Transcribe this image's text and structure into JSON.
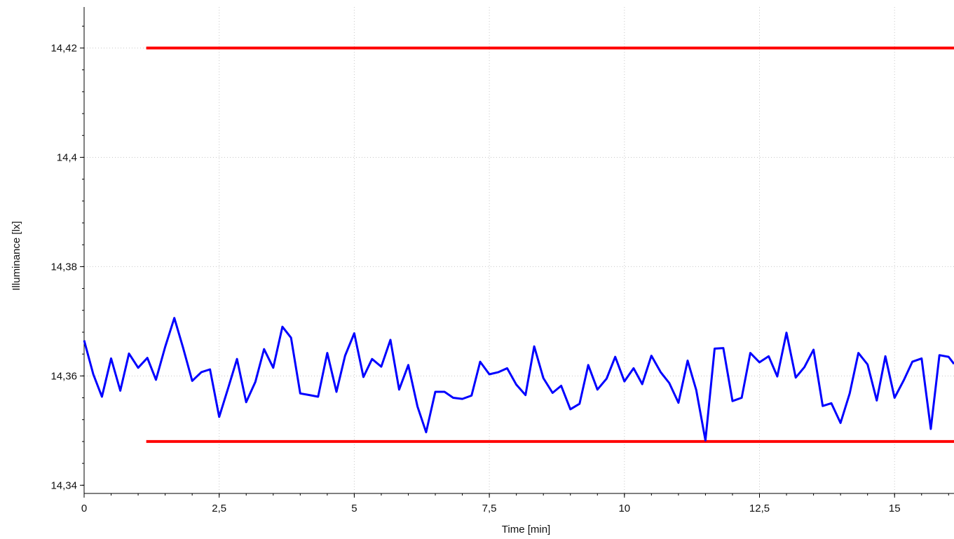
{
  "chart_data": {
    "type": "line",
    "title": "",
    "xlabel": "Time [min]",
    "ylabel": "Illuminance [lx]",
    "xlim": [
      0,
      16.1
    ],
    "ylim": [
      14.3385,
      14.4275
    ],
    "x_ticks": [
      0,
      2.5,
      5,
      7.5,
      10,
      12.5,
      15
    ],
    "x_tick_labels": [
      "0",
      "2,5",
      "5",
      "7,5",
      "10",
      "12,5",
      "15"
    ],
    "y_ticks": [
      14.34,
      14.36,
      14.38,
      14.4,
      14.42
    ],
    "y_tick_labels": [
      "14,34",
      "14,36",
      "14,38",
      "14,4",
      "14,42"
    ],
    "grid": true,
    "legend": "none",
    "limits": [
      {
        "y": 14.42,
        "x": [
          1.15,
          16.1
        ],
        "color": "#ff0000"
      },
      {
        "y": 14.348,
        "x": [
          1.15,
          16.1
        ],
        "color": "#ff0000"
      }
    ],
    "series": [
      {
        "color": "#0000ff",
        "x": [
          0,
          0.17,
          0.33,
          0.5,
          0.67,
          0.83,
          1.0,
          1.17,
          1.33,
          1.5,
          1.67,
          1.83,
          2.0,
          2.17,
          2.33,
          2.5,
          2.67,
          2.83,
          3.0,
          3.17,
          3.33,
          3.5,
          3.67,
          3.83,
          4.0,
          4.17,
          4.33,
          4.5,
          4.67,
          4.83,
          5.0,
          5.17,
          5.33,
          5.5,
          5.67,
          5.83,
          6.0,
          6.17,
          6.33,
          6.5,
          6.67,
          6.83,
          7.0,
          7.17,
          7.33,
          7.5,
          7.67,
          7.83,
          8.0,
          8.17,
          8.33,
          8.5,
          8.67,
          8.83,
          9.0,
          9.17,
          9.33,
          9.5,
          9.67,
          9.83,
          10.0,
          10.17,
          10.33,
          10.5,
          10.67,
          10.83,
          11.0,
          11.17,
          11.33,
          11.5,
          11.67,
          11.83,
          12.0,
          12.17,
          12.33,
          12.5,
          12.67,
          12.83,
          13.0,
          13.17,
          13.33,
          13.5,
          13.67,
          13.83,
          14.0,
          14.17,
          14.33,
          14.5,
          14.67,
          14.83,
          15.0,
          15.17,
          15.33,
          15.5,
          15.67,
          15.83,
          16.0,
          16.1
        ],
        "y": [
          14.3665,
          14.3603,
          14.3562,
          14.3632,
          14.3573,
          14.3641,
          14.3615,
          14.3633,
          14.3593,
          14.3653,
          14.3706,
          14.3652,
          14.3591,
          14.3607,
          14.3612,
          14.3525,
          14.3579,
          14.3631,
          14.3552,
          14.3589,
          14.3649,
          14.3615,
          14.369,
          14.367,
          14.3568,
          14.3565,
          14.3562,
          14.3642,
          14.3571,
          14.3637,
          14.3678,
          14.3598,
          14.3631,
          14.3617,
          14.3666,
          14.3575,
          14.362,
          14.3544,
          14.3497,
          14.3571,
          14.3571,
          14.356,
          14.3558,
          14.3564,
          14.3626,
          14.3603,
          14.3607,
          14.3614,
          14.3584,
          14.3565,
          14.3654,
          14.3596,
          14.3569,
          14.3582,
          14.3539,
          14.3549,
          14.362,
          14.3575,
          14.3595,
          14.3635,
          14.359,
          14.3614,
          14.3585,
          14.3637,
          14.3607,
          14.3587,
          14.3551,
          14.3628,
          14.3574,
          14.3482,
          14.365,
          14.3651,
          14.3554,
          14.356,
          14.3642,
          14.3625,
          14.3636,
          14.3599,
          14.3679,
          14.3597,
          14.3616,
          14.3648,
          14.3545,
          14.355,
          14.3514,
          14.3568,
          14.3642,
          14.3621,
          14.3555,
          14.3636,
          14.356,
          14.3592,
          14.3626,
          14.3632,
          14.3503,
          14.3638,
          14.3635,
          14.3622
        ]
      }
    ]
  }
}
